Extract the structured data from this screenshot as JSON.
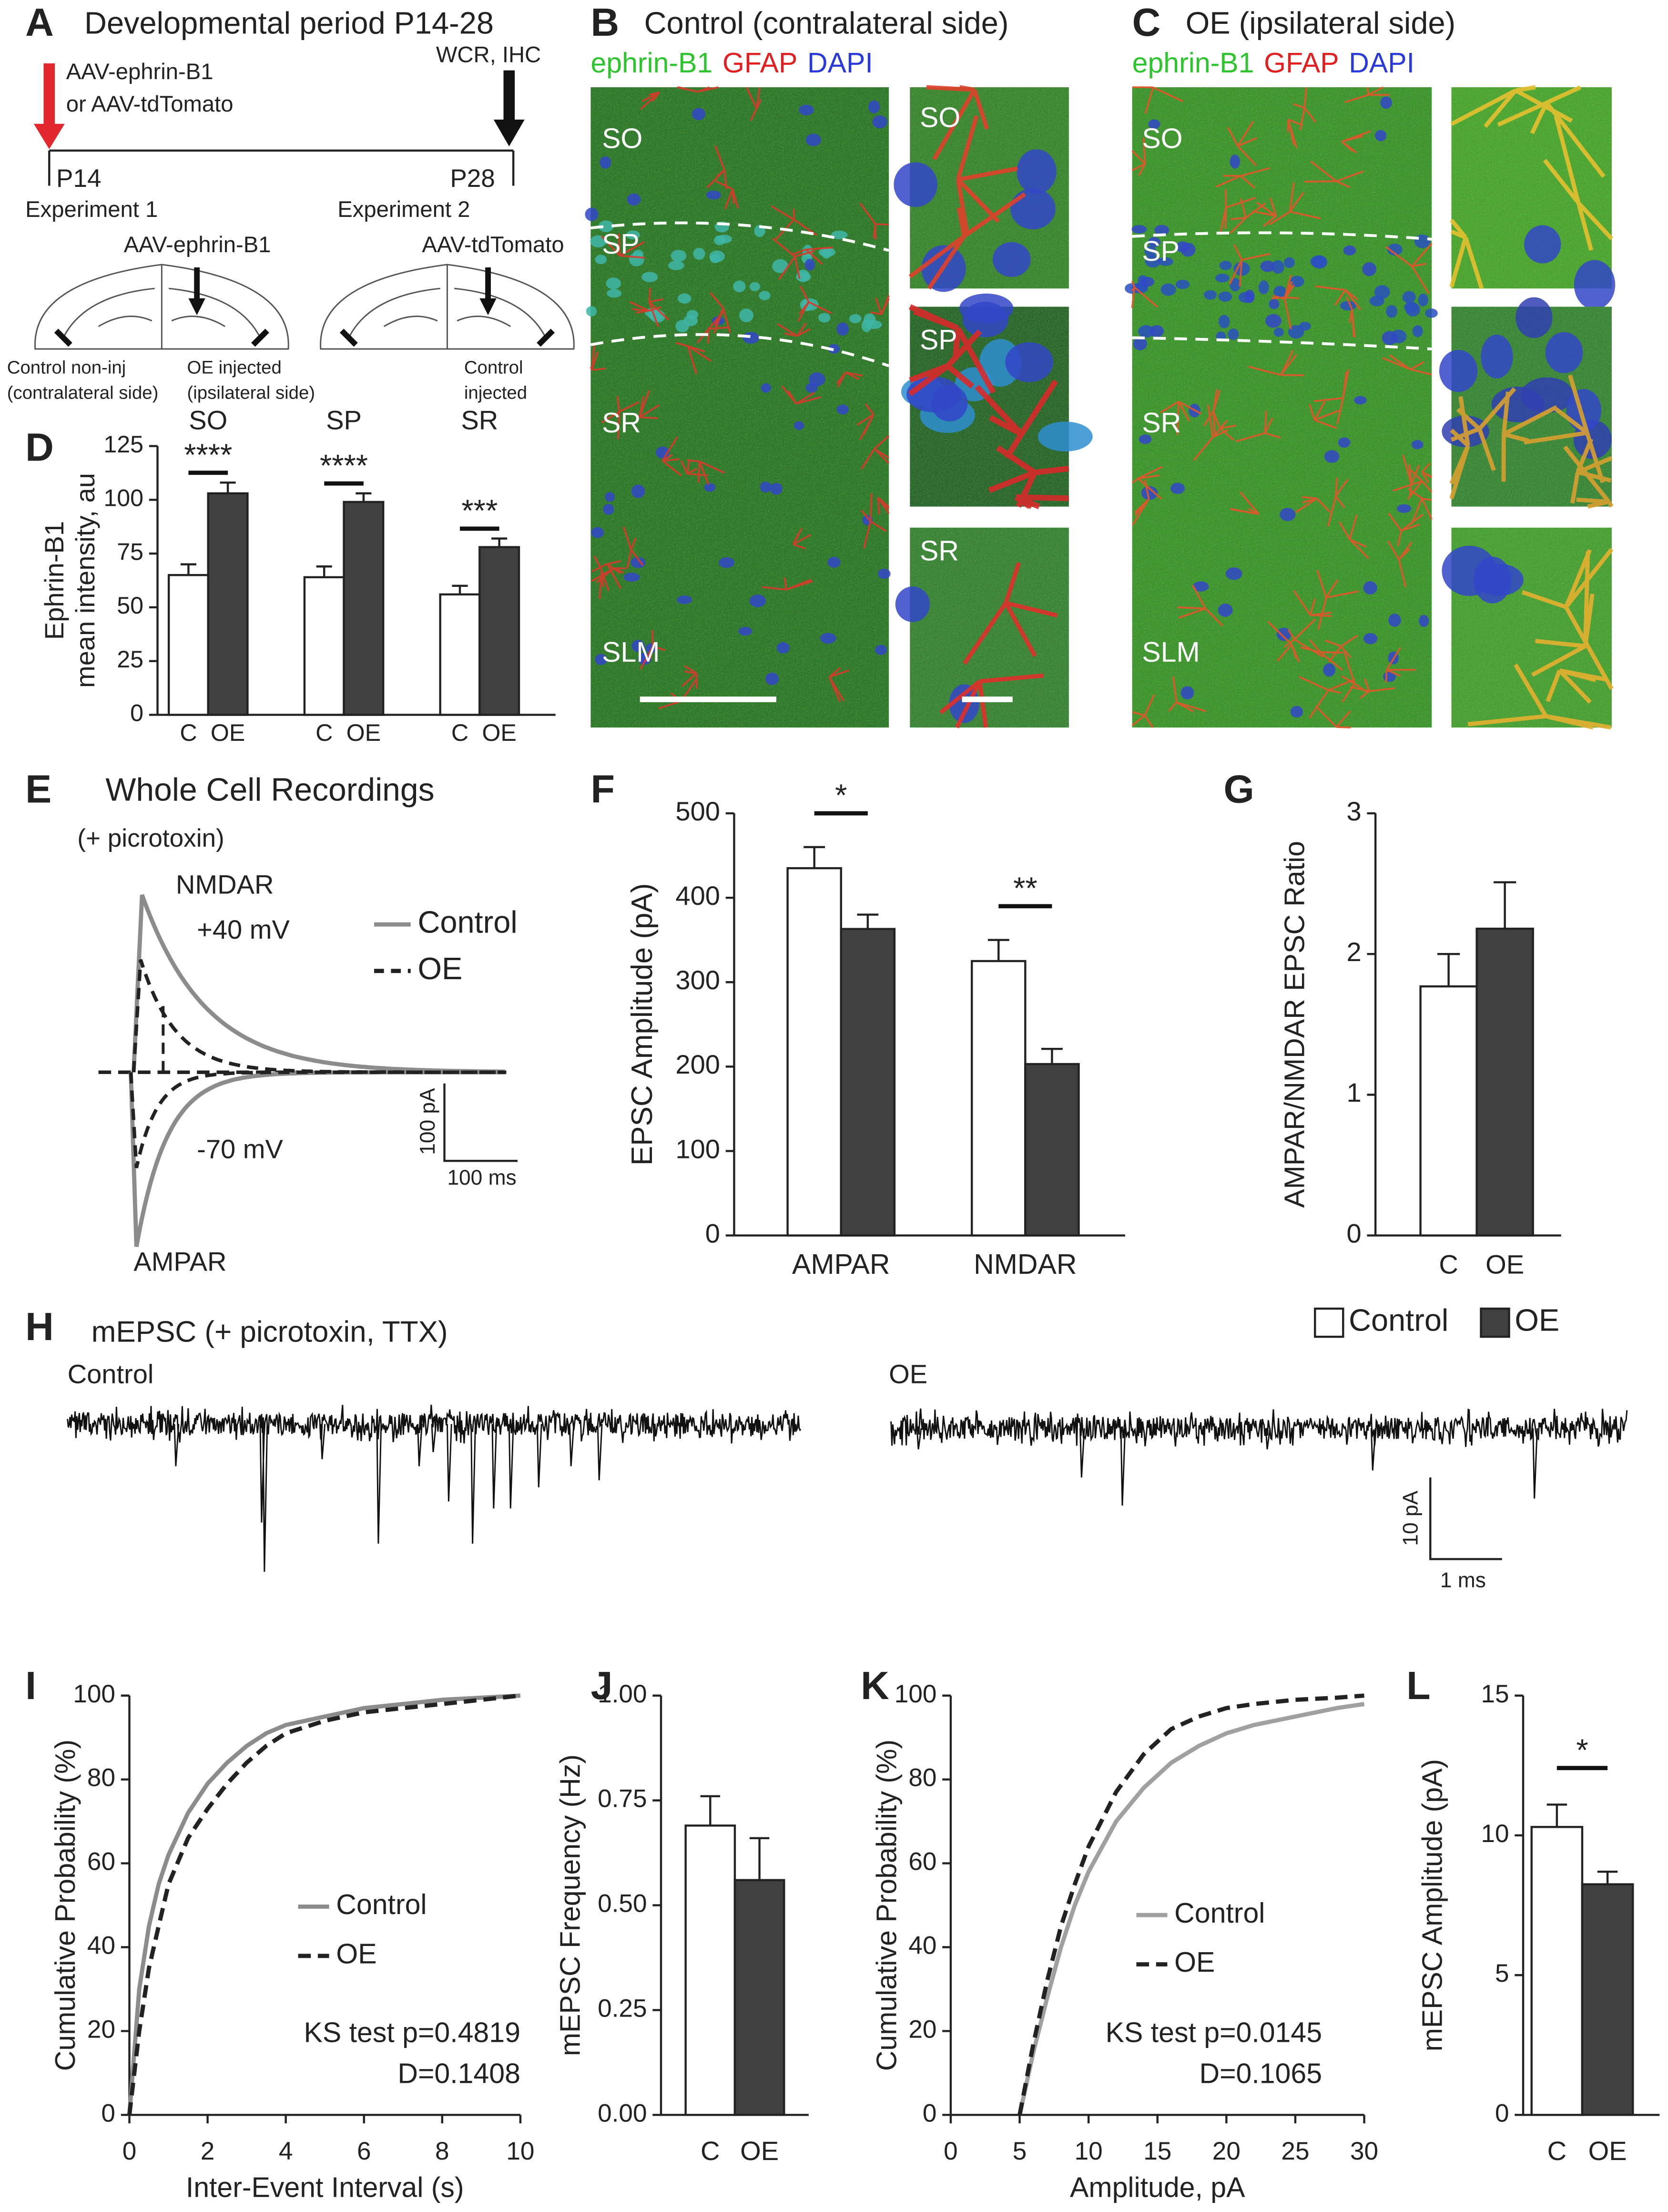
{
  "panel_labels": [
    "A",
    "B",
    "C",
    "D",
    "E",
    "F",
    "G",
    "H",
    "I",
    "J",
    "K",
    "L"
  ],
  "panel_a": {
    "title": "Developmental period P14-28",
    "inject": "AAV-ephrin-B1",
    "inject_alt": "or AAV-tdTomato",
    "end": "WCR, IHC",
    "start_day": "P14",
    "end_day": "P28",
    "exp1": "Experiment 1",
    "exp1_virus": "AAV-ephrin-B1",
    "exp2": "Experiment 2",
    "exp2_virus": "AAV-tdTomato",
    "control_noninj": [
      "Control non-inj",
      "(contralateral side)"
    ],
    "oe_injected": [
      "OE injected",
      "(ipsilateral side)"
    ],
    "control_injected": [
      "Control",
      "injected"
    ]
  },
  "panel_b": {
    "title": "Control (contralateral side)",
    "stains": [
      "ephrin-B1",
      "GFAP",
      "DAPI"
    ],
    "layers": [
      "SO",
      "SP",
      "SR",
      "SLM"
    ],
    "insets": [
      "SO",
      "SP",
      "SR"
    ]
  },
  "panel_c": {
    "title": "OE (ipsilateral side)",
    "stains": [
      "ephrin-B1",
      "GFAP",
      "DAPI"
    ],
    "layers": [
      "SO",
      "SP",
      "SR",
      "SLM"
    ]
  },
  "panel_e": {
    "title": "Whole Cell Recordings",
    "subtitle": "(+ picrotoxin)",
    "nmdar": "NMDAR",
    "positive": "+40 mV",
    "negative": "-70 mV",
    "ampar": "AMPAR",
    "legend": [
      "Control",
      "OE"
    ],
    "scale_y": "100 pA",
    "scale_x": "100 ms"
  },
  "panel_h": {
    "title": "mEPSC  (+ picrotoxin, TTX)",
    "traces": [
      "Control",
      "OE"
    ],
    "scale_y": "10 pA",
    "scale_x": "1 ms"
  },
  "chart_data": [
    {
      "type": "bar",
      "categories": [
        "SO",
        "SP",
        "SR"
      ],
      "series": [
        {
          "name": "C",
          "color": "#ffffff",
          "values": [
            65,
            64,
            56
          ],
          "errors": [
            5,
            5,
            4
          ]
        },
        {
          "name": "OE",
          "color": "#404040",
          "values": [
            103,
            99,
            78
          ],
          "errors": [
            5,
            4,
            4
          ]
        }
      ],
      "significance": [
        "****",
        "****",
        "***"
      ],
      "ylabel": [
        "Ephrin-B1",
        "mean intensity, au"
      ],
      "ylim": [
        0,
        125
      ],
      "yticks": [
        0,
        25,
        50,
        75,
        100,
        125
      ]
    },
    {
      "type": "bar",
      "categories": [
        "AMPAR",
        "NMDAR"
      ],
      "series": [
        {
          "name": "Control",
          "color": "#ffffff",
          "values": [
            435,
            325
          ],
          "errors": [
            25,
            25
          ]
        },
        {
          "name": "OE",
          "color": "#404040",
          "values": [
            363,
            203
          ],
          "errors": [
            17,
            18
          ]
        }
      ],
      "significance": [
        "*",
        "**"
      ],
      "ylabel": "EPSC Amplitude (pA)",
      "ylim": [
        0,
        500
      ],
      "yticks": [
        0,
        100,
        200,
        300,
        400,
        500
      ]
    },
    {
      "type": "bar",
      "categories": [
        "C",
        "OE"
      ],
      "values": [
        1.77,
        2.18
      ],
      "errors": [
        0.23,
        0.33
      ],
      "colors": [
        "#ffffff",
        "#404040"
      ],
      "ylabel": "AMPAR/NMDAR EPSC Ratio",
      "ylim": [
        0,
        3
      ],
      "yticks": [
        0,
        1,
        2,
        3
      ]
    },
    {
      "type": "line",
      "x": [
        0,
        0.25,
        0.5,
        0.75,
        1,
        1.5,
        2,
        2.5,
        3,
        3.5,
        4,
        5,
        6,
        7,
        8,
        9,
        10
      ],
      "series": [
        {
          "name": "Control",
          "color": "#8c8c8c",
          "dashed": false,
          "values": [
            0,
            30,
            45,
            55,
            62,
            72,
            79,
            84,
            88,
            91,
            93,
            95,
            97,
            98,
            99,
            99.5,
            100
          ]
        },
        {
          "name": "OE",
          "color": "#222222",
          "dashed": true,
          "values": [
            0,
            20,
            35,
            45,
            55,
            66,
            73,
            79,
            84,
            88,
            91,
            94,
            96,
            97,
            98,
            99,
            100
          ]
        }
      ],
      "annotations": [
        "KS test p=0.4819",
        "D=0.1408"
      ],
      "xlabel": "Inter-Event Interval (s)",
      "ylabel": "Cumulative Probability (%)",
      "xlim": [
        0,
        10
      ],
      "ylim": [
        0,
        100
      ],
      "xticks": [
        0,
        2,
        4,
        6,
        8,
        10
      ],
      "yticks": [
        0,
        20,
        40,
        60,
        80,
        100
      ]
    },
    {
      "type": "bar",
      "categories": [
        "C",
        "OE"
      ],
      "values": [
        0.69,
        0.56
      ],
      "errors": [
        0.07,
        0.1
      ],
      "colors": [
        "#ffffff",
        "#404040"
      ],
      "ylabel": "mEPSC Frequency (Hz)",
      "ylim": [
        0,
        1
      ],
      "yticks": [
        {
          "value": 0,
          "label": "0.00"
        },
        {
          "value": 0.25,
          "label": "0.25"
        },
        {
          "value": 0.5,
          "label": "0.50"
        },
        {
          "value": 0.75,
          "label": "0.75"
        },
        {
          "value": 1,
          "label": "1.00"
        }
      ]
    },
    {
      "type": "line",
      "x": [
        5,
        6,
        7,
        8,
        9,
        10,
        12,
        14,
        16,
        18,
        20,
        22,
        25,
        28,
        30
      ],
      "series": [
        {
          "name": "Control",
          "color": "#a0a0a0",
          "dashed": false,
          "values": [
            0,
            15,
            28,
            40,
            50,
            58,
            70,
            78,
            84,
            88,
            91,
            93,
            95,
            97,
            98
          ]
        },
        {
          "name": "OE",
          "color": "#222222",
          "dashed": true,
          "values": [
            0,
            17,
            32,
            45,
            55,
            64,
            77,
            86,
            92,
            95,
            97,
            98,
            99,
            99.5,
            100
          ]
        }
      ],
      "annotations": [
        "KS test p=0.0145",
        "D=0.1065"
      ],
      "xlabel": "Amplitude, pA",
      "ylabel": "Cumulative Probability (%)",
      "xlim": [
        0,
        30
      ],
      "ylim": [
        0,
        100
      ],
      "xticks": [
        0,
        5,
        10,
        15,
        20,
        25,
        30
      ],
      "yticks": [
        0,
        20,
        40,
        60,
        80,
        100
      ]
    },
    {
      "type": "bar",
      "categories": [
        "C",
        "OE"
      ],
      "values": [
        10.3,
        8.25
      ],
      "errors": [
        0.8,
        0.45
      ],
      "colors": [
        "#ffffff",
        "#404040"
      ],
      "significance": "*",
      "ylabel": "mEPSC Amplitude (pA)",
      "ylim": [
        0,
        15
      ],
      "yticks": [
        0,
        5,
        10,
        15
      ]
    }
  ]
}
